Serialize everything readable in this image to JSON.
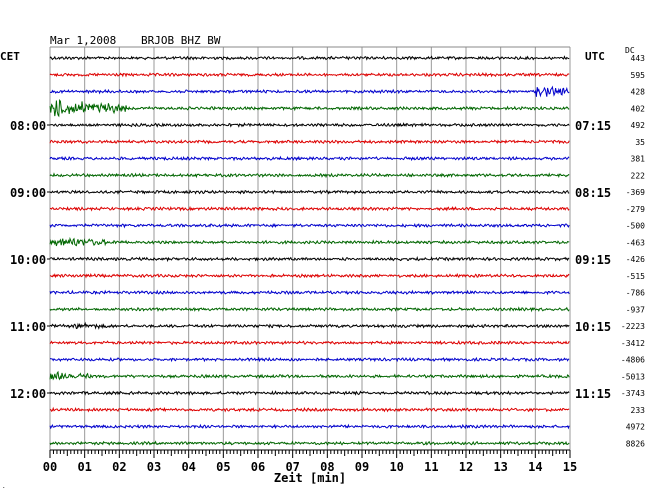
{
  "header": {
    "date": "Mar 1,2008",
    "station": "BRJOB BHZ BW",
    "left_zone": "CET",
    "right_zone": "UTC",
    "dc_label": "DC"
  },
  "chart_data": {
    "type": "line",
    "title": "Mar 1,2008   BRJOB BHZ BW",
    "xlabel": "Zeit [min]",
    "x_ticks": [
      "00",
      "01",
      "02",
      "03",
      "04",
      "05",
      "06",
      "07",
      "08",
      "09",
      "10",
      "11",
      "12",
      "13",
      "14",
      "15"
    ],
    "xlim": [
      0,
      15
    ],
    "grid": true,
    "trace_colors": [
      "#000000",
      "#dd0000",
      "#0000cc",
      "#006600"
    ],
    "left_hour_labels": [
      {
        "row": 4,
        "label": "08:00"
      },
      {
        "row": 8,
        "label": "09:00"
      },
      {
        "row": 12,
        "label": "10:00"
      },
      {
        "row": 16,
        "label": "11:00"
      },
      {
        "row": 20,
        "label": "12:00"
      }
    ],
    "right_hour_labels": [
      {
        "row": 4,
        "label": "07:15"
      },
      {
        "row": 8,
        "label": "08:15"
      },
      {
        "row": 12,
        "label": "09:15"
      },
      {
        "row": 16,
        "label": "10:15"
      },
      {
        "row": 20,
        "label": "11:15"
      }
    ],
    "dc_offsets": [
      "443",
      "595",
      "428",
      "402",
      "492",
      "35",
      "381",
      "222",
      "-369",
      "-279",
      "-500",
      "-463",
      "-426",
      "-515",
      "-786",
      "-937",
      "-2223",
      "-3412",
      "-4806",
      "-5013",
      "-3743",
      "233",
      "4972",
      "8826"
    ],
    "events": [
      {
        "row": 3,
        "from_min": 0.0,
        "to_min": 2.2,
        "amplitude": 7
      },
      {
        "row": 2,
        "from_min": 14.0,
        "to_min": 15.0,
        "amplitude": 5
      },
      {
        "row": 11,
        "from_min": 0.0,
        "to_min": 2.0,
        "amplitude": 4
      },
      {
        "row": 16,
        "from_min": 0.6,
        "to_min": 1.8,
        "amplitude": 3
      },
      {
        "row": 19,
        "from_min": 0.0,
        "to_min": 1.2,
        "amplitude": 4
      }
    ]
  }
}
